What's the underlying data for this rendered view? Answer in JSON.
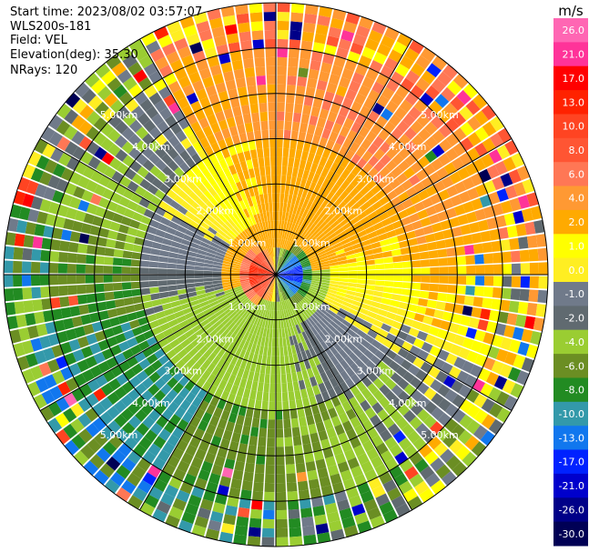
{
  "header": {
    "start_time": "Start time: 2023/08/02 03:57:07",
    "instrument": "WLS200s-181",
    "field": "Field: VEL",
    "elevation": "Elevation(deg): 35.30",
    "nrays": "NRays: 120"
  },
  "chart_data": {
    "type": "ppi",
    "field": "VEL",
    "units": "m/s",
    "n_rays": 120,
    "max_range_km": 6.0,
    "range_rings_km": [
      1,
      2,
      3,
      4,
      5,
      6
    ],
    "range_ring_labels": [
      "1.00km",
      "2.00km",
      "3.00km",
      "4.00km",
      "5.00km"
    ],
    "colorbar": {
      "title": "m/s",
      "ticks": [
        "26.0",
        "21.0",
        "17.0",
        "13.0",
        "10.0",
        "8.0",
        "6.0",
        "4.0",
        "2.0",
        "1.0",
        "0.0",
        "-1.0",
        "-2.0",
        "-4.0",
        "-6.0",
        "-8.0",
        "-10.0",
        "-13.0",
        "-17.0",
        "-21.0",
        "-26.0",
        "-30.0"
      ],
      "bins": [
        {
          "min": 26,
          "max": 30,
          "color": "#ff66b3"
        },
        {
          "min": 21,
          "max": 26,
          "color": "#ff3399"
        },
        {
          "min": 17,
          "max": 21,
          "color": "#ff0000"
        },
        {
          "min": 13,
          "max": 17,
          "color": "#ff2200"
        },
        {
          "min": 10,
          "max": 13,
          "color": "#ff4422"
        },
        {
          "min": 8,
          "max": 10,
          "color": "#ff5533"
        },
        {
          "min": 6,
          "max": 8,
          "color": "#ff7755"
        },
        {
          "min": 4,
          "max": 6,
          "color": "#ff9933"
        },
        {
          "min": 2,
          "max": 4,
          "color": "#ffaa00"
        },
        {
          "min": 1,
          "max": 2,
          "color": "#ffff00"
        },
        {
          "min": 0,
          "max": 1,
          "color": "#ffee22"
        },
        {
          "min": -1,
          "max": 0,
          "color": "#707a8a"
        },
        {
          "min": -2,
          "max": -1,
          "color": "#606a70"
        },
        {
          "min": -4,
          "max": -2,
          "color": "#9acd32"
        },
        {
          "min": -6,
          "max": -4,
          "color": "#6b8e23"
        },
        {
          "min": -8,
          "max": -6,
          "color": "#228b22"
        },
        {
          "min": -10,
          "max": -8,
          "color": "#3399aa"
        },
        {
          "min": -13,
          "max": -10,
          "color": "#1177ee"
        },
        {
          "min": -17,
          "max": -13,
          "color": "#0022ff"
        },
        {
          "min": -21,
          "max": -17,
          "color": "#0000cc"
        },
        {
          "min": -26,
          "max": -21,
          "color": "#000088"
        },
        {
          "min": -30,
          "max": -26,
          "color": "#000055"
        }
      ]
    },
    "velocity_summary": [
      {
        "region": "center-west",
        "range_km": [
          0,
          0.6
        ],
        "velocity_ms": 13
      },
      {
        "region": "center-east",
        "range_km": [
          0,
          0.6
        ],
        "velocity_ms": -13
      },
      {
        "region": "near-north",
        "range_km": [
          0.6,
          3.0
        ],
        "velocity_ms": 2
      },
      {
        "region": "near-south",
        "range_km": [
          0.6,
          3.0
        ],
        "velocity_ms": -3
      },
      {
        "region": "far-north",
        "range_km": [
          3.0,
          6.0
        ],
        "velocity_ms": 5
      },
      {
        "region": "far-east",
        "range_km": [
          3.0,
          6.0
        ],
        "velocity_ms": 2
      },
      {
        "region": "far-south",
        "range_km": [
          3.0,
          6.0
        ],
        "velocity_ms": -5
      },
      {
        "region": "far-west",
        "range_km": [
          3.0,
          6.0
        ],
        "velocity_ms": -5
      }
    ]
  }
}
